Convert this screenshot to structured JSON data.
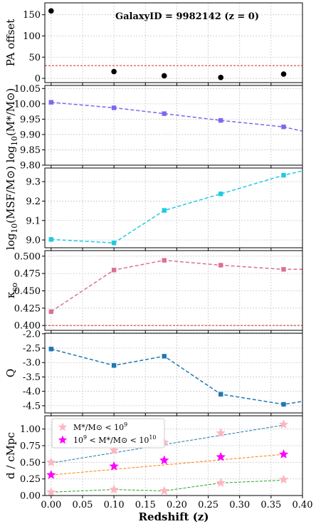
{
  "chart_data": {
    "type": "line",
    "xlabel": "Redshift (z)",
    "xlim": [
      -0.01,
      0.4
    ],
    "xticks": [
      "0.00",
      "0.05",
      "0.10",
      "0.15",
      "0.20",
      "0.25",
      "0.30",
      "0.35",
      "0.40"
    ],
    "xtick_values": [
      0,
      0.05,
      0.1,
      0.15,
      0.2,
      0.25,
      0.3,
      0.35,
      0.4
    ],
    "grid": true,
    "panels": [
      {
        "id": "pa",
        "ylabel": "PA offset",
        "ylim": [
          -10,
          178
        ],
        "yticks": [
          "0",
          "50",
          "100",
          "150"
        ],
        "ytick_values": [
          0,
          50,
          100,
          150
        ],
        "annotation": "GalaxyID = 9982142 (z = 0)",
        "hline": {
          "value": 30,
          "color": "#d62728"
        },
        "series": [
          {
            "marker": "circle",
            "color": "#000000",
            "line": false,
            "x": [
              0.0,
              0.1,
              0.18,
              0.27,
              0.37
            ],
            "y": [
              159,
              16,
              6,
              2,
              10
            ]
          }
        ]
      },
      {
        "id": "mstar",
        "ylabel": "log10(M*/M⊙)",
        "ylim": [
          9.8,
          10.06
        ],
        "yticks": [
          "9.80",
          "9.85",
          "9.90",
          "9.95",
          "10.00",
          "10.05"
        ],
        "ytick_values": [
          9.8,
          9.85,
          9.9,
          9.95,
          10.0,
          10.05
        ],
        "series": [
          {
            "marker": "square",
            "color": "#7b68ee",
            "line": true,
            "dashed": true,
            "x": [
              0.0,
              0.1,
              0.18,
              0.27,
              0.37,
              0.4
            ],
            "y": [
              10.005,
              9.987,
              9.968,
              9.946,
              9.925,
              9.911
            ]
          }
        ]
      },
      {
        "id": "msf",
        "ylabel": "log10(MSF/M⊙)",
        "ylim": [
          8.96,
          9.37
        ],
        "yticks": [
          "9.0",
          "9.1",
          "9.2",
          "9.3"
        ],
        "ytick_values": [
          9.0,
          9.1,
          9.2,
          9.3
        ],
        "series": [
          {
            "marker": "square",
            "color": "#1ecbe1",
            "line": true,
            "dashed": true,
            "x": [
              0.0,
              0.1,
              0.18,
              0.27,
              0.37,
              0.4
            ],
            "y": [
              9.003,
              8.985,
              9.152,
              9.237,
              9.333,
              9.355
            ]
          }
        ]
      },
      {
        "id": "kappa",
        "ylabel": "κco",
        "ylim": [
          0.393,
          0.508
        ],
        "yticks": [
          "0.400",
          "0.425",
          "0.450",
          "0.475",
          "0.500"
        ],
        "ytick_values": [
          0.4,
          0.425,
          0.45,
          0.475,
          0.5
        ],
        "hline": {
          "value": 0.4,
          "color": "#d62728"
        },
        "series": [
          {
            "marker": "square",
            "color": "#db7093",
            "line": true,
            "dashed": true,
            "x": [
              0.0,
              0.1,
              0.18,
              0.27,
              0.37,
              0.4
            ],
            "y": [
              0.42,
              0.48,
              0.494,
              0.487,
              0.481,
              0.481
            ]
          }
        ]
      },
      {
        "id": "q",
        "ylabel": "Q",
        "ylim": [
          -4.75,
          -1.98
        ],
        "yticks": [
          "-4.5",
          "-4.0",
          "-3.5",
          "-3.0",
          "-2.5",
          "-2.0"
        ],
        "ytick_values": [
          -4.5,
          -4.0,
          -3.5,
          -3.0,
          -2.5,
          -2.0
        ],
        "series": [
          {
            "marker": "square",
            "color": "#1f77b4",
            "line": true,
            "dashed": true,
            "x": [
              0.0,
              0.1,
              0.18,
              0.27,
              0.37,
              0.4
            ],
            "y": [
              -2.53,
              -3.1,
              -2.78,
              -4.1,
              -4.45,
              -4.35
            ]
          }
        ]
      },
      {
        "id": "dist",
        "ylabel": "d / cMpc",
        "ylim": [
          0,
          1.2
        ],
        "yticks": [
          "0.00",
          "0.25",
          "0.50",
          "0.75",
          "1.00"
        ],
        "ytick_values": [
          0,
          0.25,
          0.5,
          0.75,
          1.0
        ],
        "legend": {
          "position": "top-left",
          "entries": [
            {
              "label": "M*/M⊙ < 10^9",
              "color": "#ffb6c1"
            },
            {
              "label": "10^9 < M*/M⊙ < 10^10",
              "color": "#ff00ff"
            }
          ]
        },
        "series": [
          {
            "name": "M*/M⊙ < 10^9",
            "marker": "star",
            "color": "#ffb6c1",
            "line": false,
            "x": [
              0.0,
              0.1,
              0.18,
              0.27,
              0.37
            ],
            "y": [
              0.5,
              0.68,
              0.8,
              0.94,
              1.07
            ]
          },
          {
            "name": "10^9 < M*/M⊙ < 10^10",
            "marker": "star",
            "color": "#ff00ff",
            "line": false,
            "x": [
              0.0,
              0.1,
              0.18,
              0.27,
              0.37
            ],
            "y": [
              0.31,
              0.44,
              0.53,
              0.58,
              0.62
            ]
          },
          {
            "marker": "star",
            "color": "#ffb6c1",
            "line": false,
            "x": [
              0.0,
              0.1,
              0.18,
              0.27,
              0.37
            ],
            "y": [
              0.05,
              0.09,
              0.07,
              0.19,
              0.24
            ]
          }
        ],
        "fit_lines": [
          {
            "color": "#1f77b4",
            "x": [
              0.0,
              0.37
            ],
            "y": [
              0.49,
              1.06
            ]
          },
          {
            "color": "#ff7f0e",
            "x": [
              0.0,
              0.37
            ],
            "y": [
              0.31,
              0.62
            ]
          },
          {
            "color": "#2ca02c",
            "x": [
              0.0,
              0.1,
              0.18,
              0.27,
              0.37
            ],
            "y": [
              0.05,
              0.09,
              0.07,
              0.19,
              0.23
            ]
          }
        ]
      }
    ]
  }
}
